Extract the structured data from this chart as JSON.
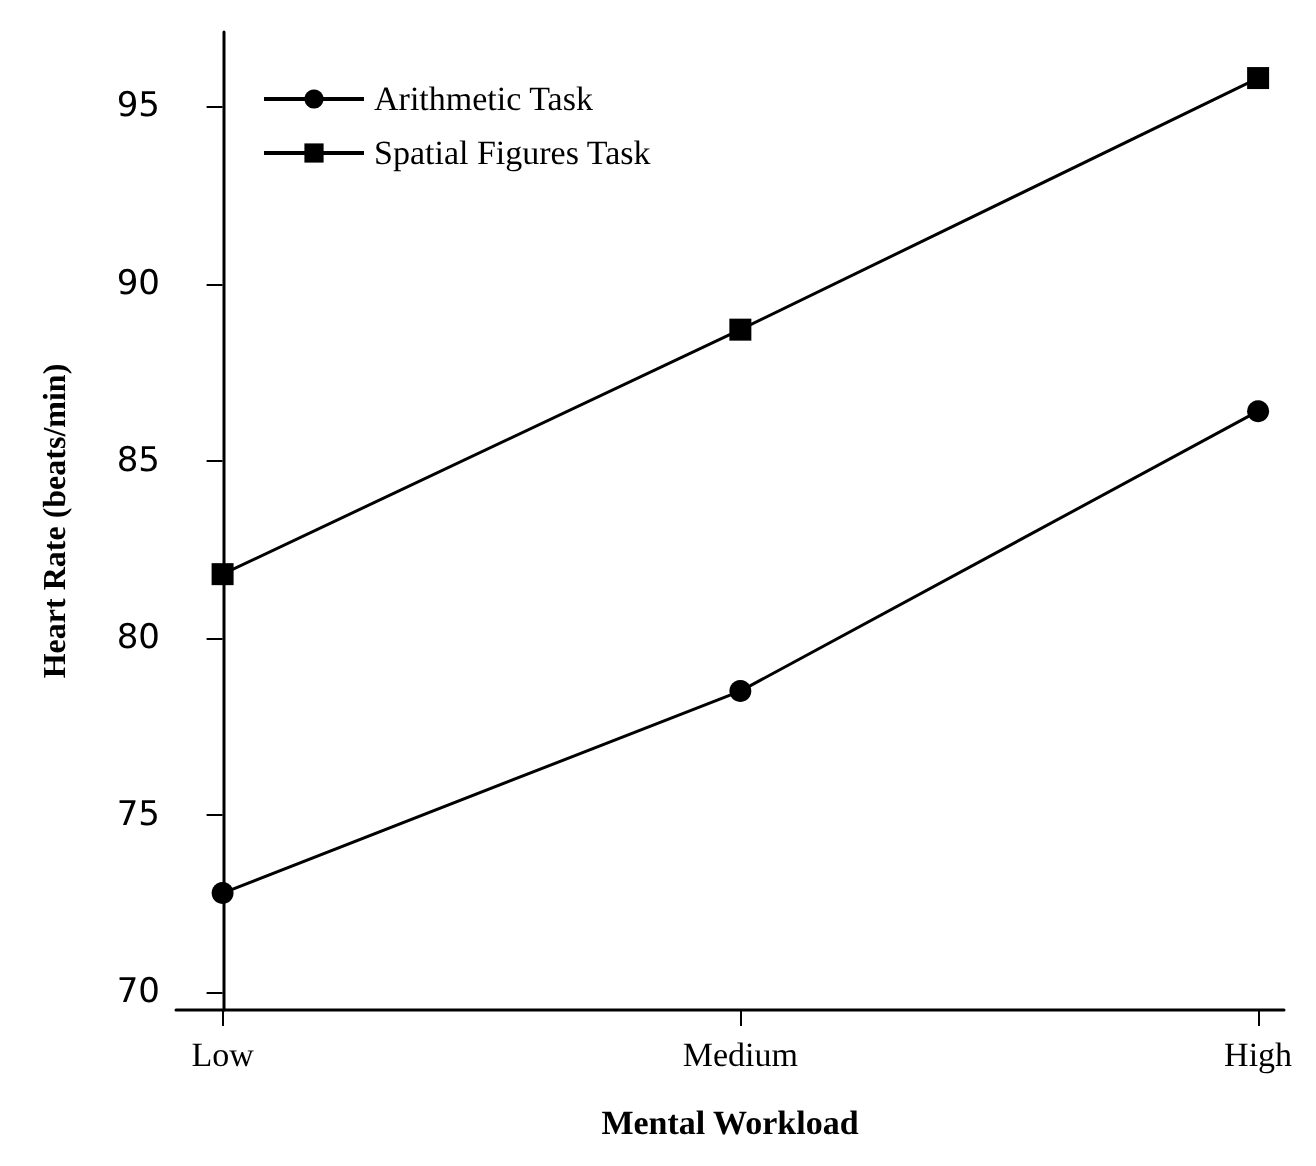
{
  "chart_data": {
    "type": "line",
    "xlabel": "Mental Workload",
    "ylabel": "Heart Rate (beats/min)",
    "categories": [
      "Low",
      "Medium",
      "High"
    ],
    "series": [
      {
        "name": "Arithmetic Task",
        "color": "#000000",
        "marker": "circle",
        "values": [
          72.8,
          78.5,
          86.4
        ]
      },
      {
        "name": "Spatial Figures Task",
        "color": "#000000",
        "marker": "square",
        "values": [
          81.8,
          88.7,
          95.8
        ]
      }
    ],
    "ylim": [
      69.5,
      97.1
    ],
    "yticks": [
      70,
      75,
      80,
      85,
      90,
      95
    ],
    "grid": false,
    "legend": "top left",
    "line_style": "solid"
  }
}
